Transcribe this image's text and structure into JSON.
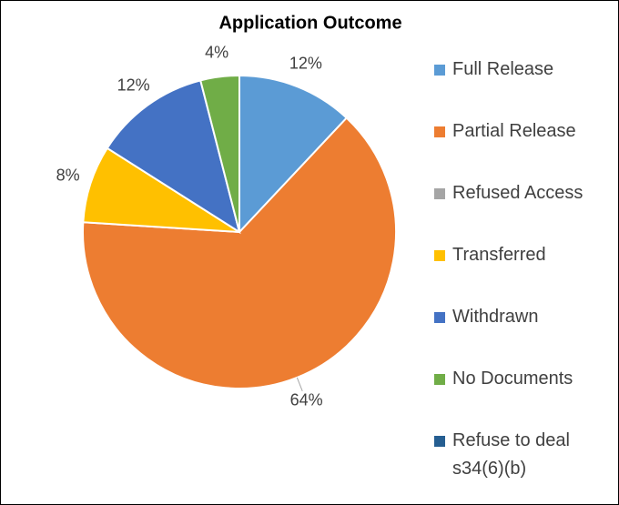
{
  "chart_data": {
    "type": "pie",
    "title": "Application Outcome",
    "categories": [
      "Full Release",
      "Partial Release",
      "Refused Access",
      "Transferred",
      "Withdrawn",
      "No Documents",
      "Refuse to deal s34(6)(b)"
    ],
    "values": [
      12,
      64,
      0,
      8,
      12,
      4,
      0
    ],
    "value_labels": [
      "12%",
      "64%",
      null,
      "8%",
      "12%",
      "4%",
      null
    ],
    "colors": [
      "#5b9bd5",
      "#ed7d31",
      "#a5a5a5",
      "#ffc000",
      "#4472c4",
      "#70ad47",
      "#255e91"
    ],
    "legend": "right"
  }
}
